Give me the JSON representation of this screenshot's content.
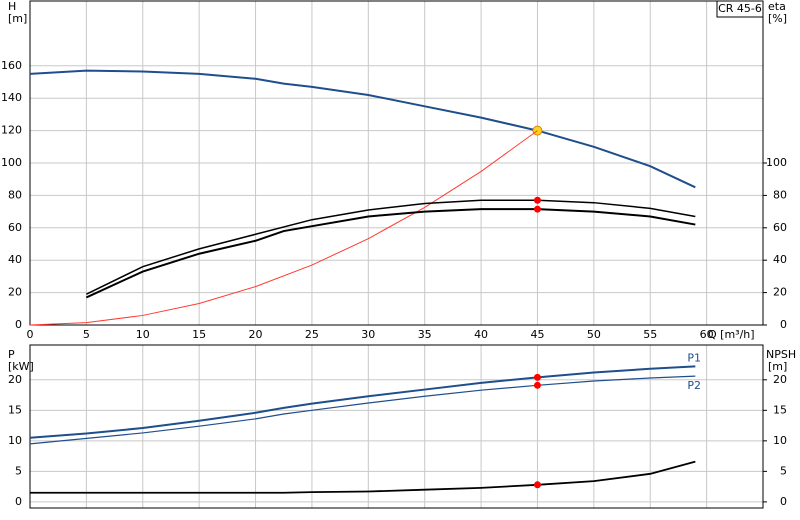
{
  "chart_data": [
    {
      "type": "line",
      "title": "CR 45-6",
      "x_label": "Q [m³/h]",
      "y_label": "H",
      "y_unit": "[m]",
      "y2_label": "eta",
      "y2_unit": "[%]",
      "xlim": [
        0,
        65
      ],
      "xticks": [
        0,
        5,
        10,
        15,
        20,
        25,
        30,
        35,
        40,
        45,
        50,
        55,
        60
      ],
      "ylim": [
        0,
        200
      ],
      "yticks": [
        0,
        20,
        40,
        60,
        80,
        100,
        120,
        140,
        160
      ],
      "y2lim": [
        0,
        200
      ],
      "y2ticks": [
        0,
        20,
        40,
        60,
        80,
        100
      ],
      "grid": true,
      "marker_x": 45,
      "series": [
        {
          "color": "#1f4e8c",
          "width": 2,
          "marker_color": "#ffd21f",
          "x": [
            0,
            5,
            10,
            15,
            20,
            22.5,
            25,
            30,
            35,
            40,
            45,
            50,
            55,
            59
          ],
          "values": [
            155,
            157,
            156.5,
            155,
            152,
            149,
            147,
            142,
            135,
            128,
            120,
            110,
            98,
            85
          ]
        },
        {
          "color": "#ff3b30",
          "width": 1,
          "x": [
            0,
            5,
            10,
            15,
            20,
            25,
            30,
            35,
            40,
            45
          ],
          "values": [
            0,
            1.5,
            5.9,
            13.3,
            23.7,
            37,
            53.3,
            72.6,
            94.8,
            120
          ]
        },
        {
          "color": "#000000",
          "width": 1.5,
          "axis": "y2",
          "marker_color": "#ff0000",
          "x": [
            5,
            10,
            15,
            20,
            25,
            30,
            35,
            40,
            45,
            50,
            55,
            59
          ],
          "values": [
            19,
            36,
            47,
            56,
            65,
            71,
            75,
            77,
            77,
            75.5,
            72,
            67
          ]
        },
        {
          "color": "#000000",
          "width": 2,
          "axis": "y2",
          "marker_color": "#ff0000",
          "x": [
            5,
            10,
            15,
            20,
            22.5,
            25,
            30,
            35,
            40,
            45,
            50,
            55,
            59
          ],
          "values": [
            17,
            33,
            44,
            52,
            58,
            61,
            67,
            70,
            71.5,
            71.5,
            70,
            67,
            62
          ]
        }
      ]
    },
    {
      "type": "line",
      "y_label": "P",
      "y_unit": "[kW]",
      "y2_label": "NPSH",
      "y2_unit": "[m]",
      "xlim": [
        0,
        65
      ],
      "ylim": [
        -1,
        25.7
      ],
      "yticks": [
        0,
        5,
        10,
        15,
        20
      ],
      "y2lim": [
        -1,
        25.7
      ],
      "y2ticks": [
        0,
        5,
        10,
        15,
        20
      ],
      "grid": true,
      "marker_x": 45,
      "series": [
        {
          "name": "P1",
          "color": "#1f4e8c",
          "width": 2,
          "marker_color": "#ff0000",
          "x": [
            0,
            5,
            10,
            15,
            20,
            22.5,
            25,
            30,
            35,
            40,
            45,
            50,
            55,
            59
          ],
          "values": [
            10.5,
            11.2,
            12.1,
            13.3,
            14.6,
            15.4,
            16.1,
            17.3,
            18.4,
            19.5,
            20.4,
            21.2,
            21.8,
            22.2
          ]
        },
        {
          "name": "P2",
          "color": "#1f4e8c",
          "width": 1.2,
          "marker_color": "#ff0000",
          "x": [
            0,
            10,
            15,
            20,
            22.5,
            25,
            30,
            35,
            40,
            45,
            50,
            55,
            59
          ],
          "values": [
            9.5,
            11.3,
            12.4,
            13.6,
            14.4,
            15,
            16.2,
            17.3,
            18.3,
            19.1,
            19.8,
            20.3,
            20.6
          ]
        },
        {
          "color": "#000000",
          "width": 1.8,
          "axis": "y2",
          "marker_color": "#ff0000",
          "x": [
            0,
            22.5,
            25,
            30,
            35,
            40,
            45,
            50,
            55,
            59
          ],
          "values": [
            1.5,
            1.5,
            1.6,
            1.7,
            2.0,
            2.3,
            2.8,
            3.4,
            4.6,
            6.6
          ]
        }
      ]
    }
  ]
}
